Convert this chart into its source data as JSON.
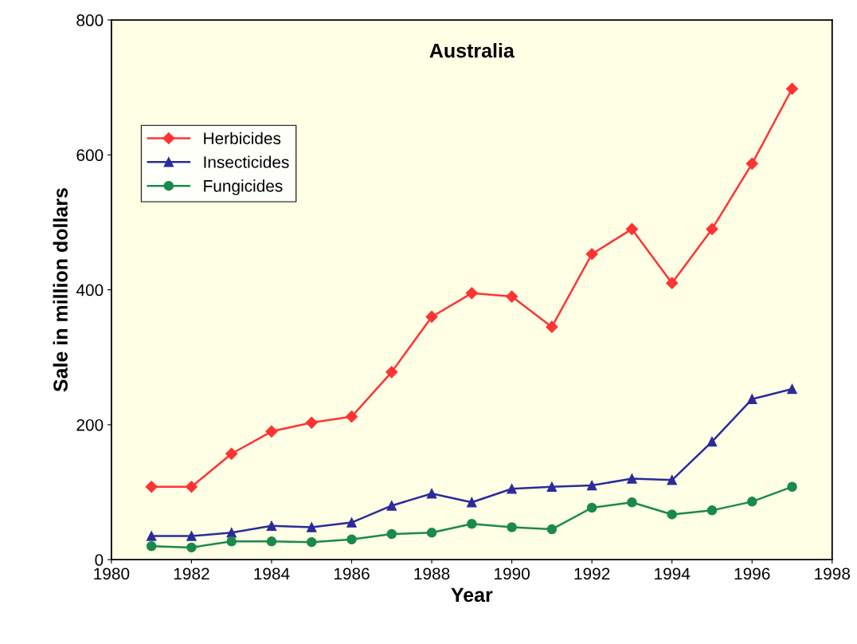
{
  "chart_data": {
    "type": "line",
    "title": "Australia",
    "xlabel": "Year",
    "ylabel": "Sale in million dollars",
    "x": [
      1981,
      1982,
      1983,
      1984,
      1985,
      1986,
      1987,
      1988,
      1989,
      1990,
      1991,
      1992,
      1993,
      1994,
      1995,
      1996,
      1997
    ],
    "series": [
      {
        "name": "Herbicides",
        "color": "#ff3333",
        "marker": "diamond",
        "values": [
          108,
          108,
          157,
          190,
          203,
          212,
          278,
          360,
          395,
          390,
          345,
          453,
          490,
          410,
          490,
          587,
          698
        ]
      },
      {
        "name": "Insecticides",
        "color": "#2b2b9b",
        "marker": "triangle",
        "values": [
          35,
          35,
          40,
          50,
          48,
          55,
          80,
          98,
          85,
          105,
          108,
          110,
          120,
          118,
          175,
          238,
          253
        ]
      },
      {
        "name": "Fungicides",
        "color": "#1a8a4a",
        "marker": "circle",
        "values": [
          20,
          18,
          27,
          27,
          26,
          30,
          38,
          40,
          53,
          48,
          45,
          77,
          85,
          67,
          73,
          86,
          108
        ]
      }
    ],
    "xlim": [
      1980,
      1998
    ],
    "xticks": [
      1980,
      1982,
      1984,
      1986,
      1988,
      1990,
      1992,
      1994,
      1996,
      1998
    ],
    "ylim": [
      0,
      800
    ],
    "yticks": [
      0,
      200,
      400,
      600,
      800
    ],
    "grid": false,
    "legend": "top left",
    "line_style": "solid"
  }
}
